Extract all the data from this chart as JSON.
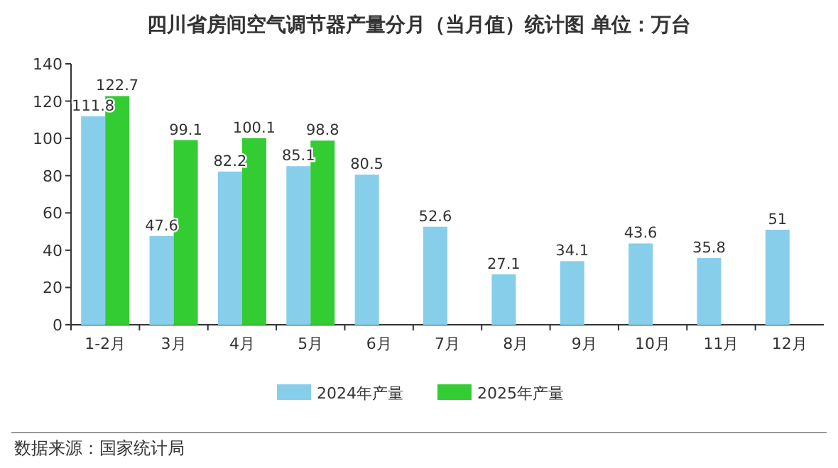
{
  "chart_data": {
    "type": "bar",
    "title": "四川省房间空气调节器产量分月（当月值）统计图 单位：万台",
    "categories": [
      "1-2月",
      "3月",
      "4月",
      "5月",
      "6月",
      "7月",
      "8月",
      "9月",
      "10月",
      "11月",
      "12月"
    ],
    "series": [
      {
        "name": "2024年产量",
        "color": "#87ceeb",
        "values": [
          111.8,
          47.6,
          82.2,
          85.1,
          80.5,
          52.6,
          27.1,
          34.1,
          43.6,
          35.8,
          51
        ]
      },
      {
        "name": "2025年产量",
        "color": "#33cc33",
        "values": [
          122.7,
          99.1,
          100.1,
          98.8,
          null,
          null,
          null,
          null,
          null,
          null,
          null
        ]
      }
    ],
    "ylim": [
      0,
      140
    ],
    "yticks": [
      0,
      20,
      40,
      60,
      80,
      100,
      120,
      140
    ],
    "data_labels": true,
    "legend": "bottom",
    "annotations": [
      "数据来源：国家统计局"
    ]
  }
}
